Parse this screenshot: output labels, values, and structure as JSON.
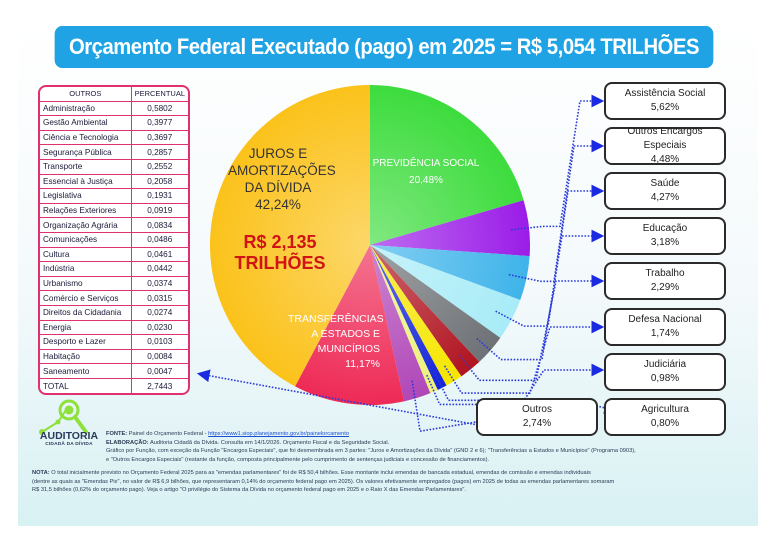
{
  "title": "Orçamento Federal Executado (pago) em 2025 = R$ 5,054 TRILHÕES",
  "others_table": {
    "headers": [
      "OUTROS",
      "PERCENTUAL"
    ],
    "rows": [
      {
        "name": "Administração",
        "value": "0,5802"
      },
      {
        "name": "Gestão Ambiental",
        "value": "0,3977"
      },
      {
        "name": "Ciência e Tecnologia",
        "value": "0,3697"
      },
      {
        "name": "Segurança Pública",
        "value": "0,2857"
      },
      {
        "name": "Transporte",
        "value": "0,2552"
      },
      {
        "name": "Essencial à Justiça",
        "value": "0,2058"
      },
      {
        "name": "Legislativa",
        "value": "0,1931"
      },
      {
        "name": "Relações Exteriores",
        "value": "0,0919"
      },
      {
        "name": "Organização Agrária",
        "value": "0,0834"
      },
      {
        "name": "Comunicações",
        "value": "0,0486"
      },
      {
        "name": "Cultura",
        "value": "0,0461"
      },
      {
        "name": "Indústria",
        "value": "0,0442"
      },
      {
        "name": "Urbanismo",
        "value": "0,0374"
      },
      {
        "name": "Comércio e Serviços",
        "value": "0,0315"
      },
      {
        "name": "Direitos da Cidadania",
        "value": "0,0274"
      },
      {
        "name": "Energia",
        "value": "0,0230"
      },
      {
        "name": "Desporto e Lazer",
        "value": "0,0103"
      },
      {
        "name": "Habitação",
        "value": "0,0084"
      },
      {
        "name": "Saneamento",
        "value": "0,0047"
      }
    ],
    "total_label": "TOTAL",
    "total_value": "2,7443"
  },
  "chart_data": {
    "type": "pie",
    "title": "Orçamento Federal Executado (pago) em 2025 = R$ 5,054 TRILHÕES",
    "unit": "%",
    "start": "top, clockwise",
    "slices": [
      {
        "name": "Previdência Social",
        "label": "PREVIDÊNCIA SOCIAL",
        "value": 20.48,
        "display": "20,48%",
        "color": "#3ddc3d"
      },
      {
        "name": "Assistência Social",
        "value": 5.62,
        "display": "5,62%",
        "color": "#9b1de8"
      },
      {
        "name": "Outros Encargos Especiais",
        "value": 4.48,
        "display": "4,48%",
        "color": "#3fb4ea"
      },
      {
        "name": "Saúde",
        "value": 4.27,
        "display": "4,27%",
        "color": "#a8ecf7"
      },
      {
        "name": "Educação",
        "value": 3.18,
        "display": "3,18%",
        "color": "#6e7276"
      },
      {
        "name": "Trabalho",
        "value": 2.29,
        "display": "2,29%",
        "color": "#b01420"
      },
      {
        "name": "Defesa Nacional",
        "value": 1.74,
        "display": "1,74%",
        "color": "#f6e600"
      },
      {
        "name": "Judiciária",
        "value": 0.98,
        "display": "0,98%",
        "color": "#1424d8"
      },
      {
        "name": "Agricultura",
        "value": 0.8,
        "display": "0,80%",
        "color": "#eef27a"
      },
      {
        "name": "Outros",
        "value": 2.74,
        "display": "2,74%",
        "color": "#b047b8"
      },
      {
        "name": "Transferências a Estados e Municípios",
        "label": "TRANSFERÊNCIAS A ESTADOS E MUNICÍPIOS",
        "value": 11.17,
        "display": "11,17%",
        "color": "#ee2a56"
      },
      {
        "name": "Juros e Amortizações da Dívida",
        "label": "JUROS E AMORTIZAÇÕES DA DÍVIDA",
        "value": 42.24,
        "display": "42,24%",
        "color": "#fbc21a"
      }
    ],
    "annotations": [
      {
        "target": "Juros e Amortizações da Dívida",
        "text": "R$ 2,135 TRILHÕES"
      }
    ]
  },
  "inner_labels": {
    "juros": [
      "JUROS E",
      "AMORTIZAÇÕES",
      "DA DÍVIDA",
      "42,24%"
    ],
    "juros_amount": [
      "R$ 2,135",
      "TRILHÕES"
    ],
    "previdencia": [
      "PREVIDÊNCIA SOCIAL",
      "20,48%"
    ],
    "transferencias": [
      "TRANSFERÊNCIAS",
      "A ESTADOS E",
      "MUNICÍPIOS",
      "11,17%"
    ]
  },
  "callouts": [
    {
      "name": "Assistência Social",
      "value": "5,62%"
    },
    {
      "name": "Outros Encargos Especiais",
      "value": "4,48%"
    },
    {
      "name": "Saúde",
      "value": "4,27%"
    },
    {
      "name": "Educação",
      "value": "3,18%"
    },
    {
      "name": "Trabalho",
      "value": "2,29%"
    },
    {
      "name": "Defesa Nacional",
      "value": "1,74%"
    },
    {
      "name": "Judiciária",
      "value": "0,98%"
    },
    {
      "name": "Agricultura",
      "value": "0,80%"
    },
    {
      "name": "Outros",
      "value": "2,74%"
    }
  ],
  "logo": {
    "name": "AUDITORIA",
    "subtitle": "CIDADÃ DA DÍVIDA"
  },
  "footer": {
    "fonte_label": "FONTE:",
    "fonte_text": "Painel do Orçamento Federal -",
    "fonte_link": "https://www1.siop.planejamento.gov.br/painelorcamento",
    "elaboracao_label": "ELABORAÇÃO:",
    "elaboracao_text": "Auditoria Cidadã da Dívida. Consulta em 14/1/2026. Orçamento Fiscal e da Seguridade Social.",
    "line3": "Gráfico por Função, com exceção da Função \"Encargos Especiais\", que foi desmembrada em 3 partes: \"Juros e Amortizações da Dívida\" (GND 2 e 6); \"Transferências a Estados e Municípios\" (Programa 0903),",
    "line4": "e \"Outros Encargos Especiais\" (restante da função, composta principalmente pelo cumprimento de sentenças judiciais e concessão de financiamentos).",
    "nota_label": "NOTA:",
    "nota_line1": "O total inicialmente previsto no Orçamento Federal 2025 para as \"emendas parlamentares\" foi de R$ 50,4 bilhões. Esse montante inclui emendas de bancada estadual, emendas de comissão e emendas individuais",
    "nota_line2": "(dentre as quais as \"Emendas Pix\", no valor de R$ 6,9 bilhões, que representaram 0,14% do orçamento federal pago em 2025). Os valores efetivamente empregados (pagos) em 2025 de todas as emendas parlamentares somaram",
    "nota_line3": "R$ 31,5 bilhões (0,62% do orçamento pago). Veja o artigo \"O privilégio do Sistema da Dívida no orçamento federal pago em 2025 e o Raio X das Emendas Parlamentares\"."
  }
}
